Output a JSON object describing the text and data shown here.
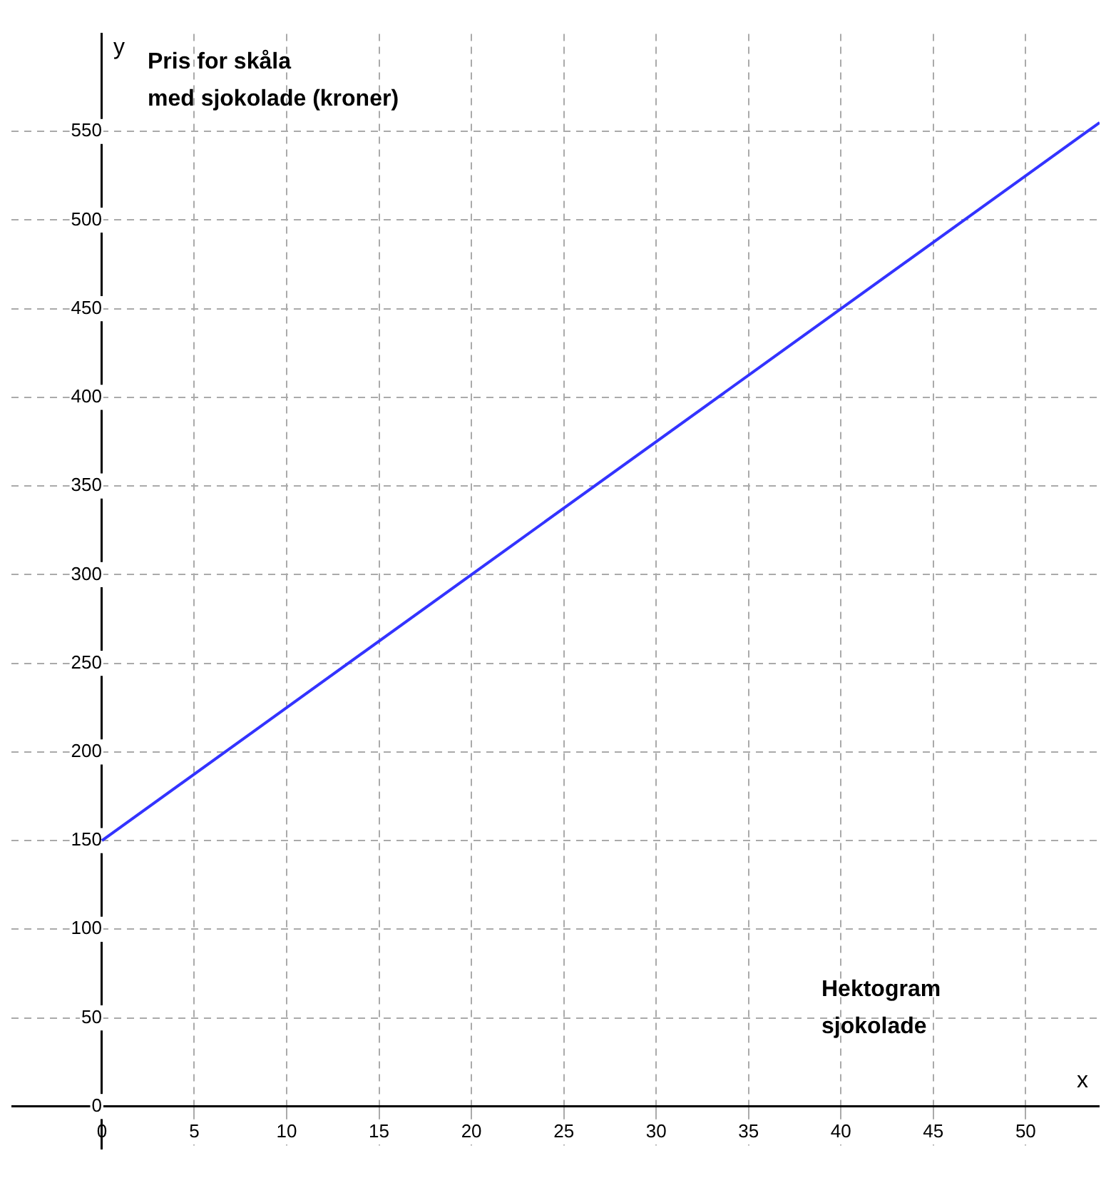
{
  "chart_data": {
    "type": "line",
    "xlabel": "Hektogram\nsjokolade",
    "ylabel": "Pris for skåla\nmed sjokolade (kroner)",
    "annotations": [
      "y",
      "x"
    ],
    "x": [
      0,
      54
    ],
    "series": [
      {
        "color": "#3333ff",
        "values": [
          150,
          555
        ]
      }
    ],
    "xlim": [
      -4.9,
      54
    ],
    "ylim": [
      -24,
      605
    ],
    "xticks": [
      0,
      5,
      10,
      15,
      20,
      25,
      30,
      35,
      40,
      45,
      50
    ],
    "yticks": [
      0,
      50,
      100,
      150,
      200,
      250,
      300,
      350,
      400,
      450,
      500,
      550
    ],
    "grid": true,
    "legend": false,
    "marker": "none",
    "line_style": "solid"
  }
}
